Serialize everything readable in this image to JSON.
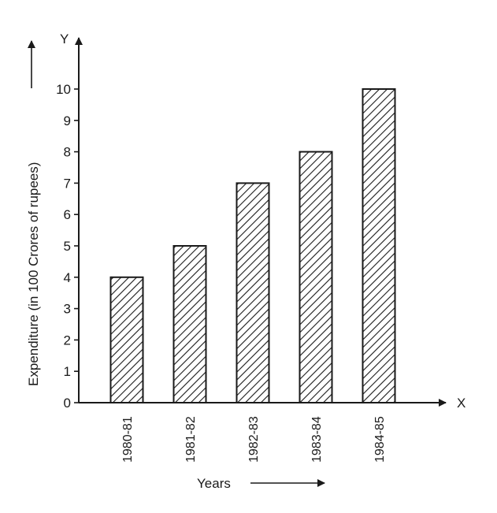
{
  "chart_data": {
    "type": "bar",
    "title": "",
    "xlabel": "Years",
    "ylabel": "Expenditure (in 100 Crores of rupees)",
    "x_axis_letter": "X",
    "y_axis_letter": "Y",
    "categories": [
      "1980-81",
      "1981-82",
      "1982-83",
      "1983-84",
      "1984-85"
    ],
    "values": [
      4,
      5,
      7,
      8,
      10
    ],
    "ylim": [
      0,
      10
    ],
    "yticks": [
      0,
      1,
      2,
      3,
      4,
      5,
      6,
      7,
      8,
      9,
      10
    ],
    "bar_fill": "hatched",
    "grid": false,
    "legend": "none",
    "colors": {
      "ink": "#1a1a1a",
      "background": "#ffffff"
    }
  }
}
